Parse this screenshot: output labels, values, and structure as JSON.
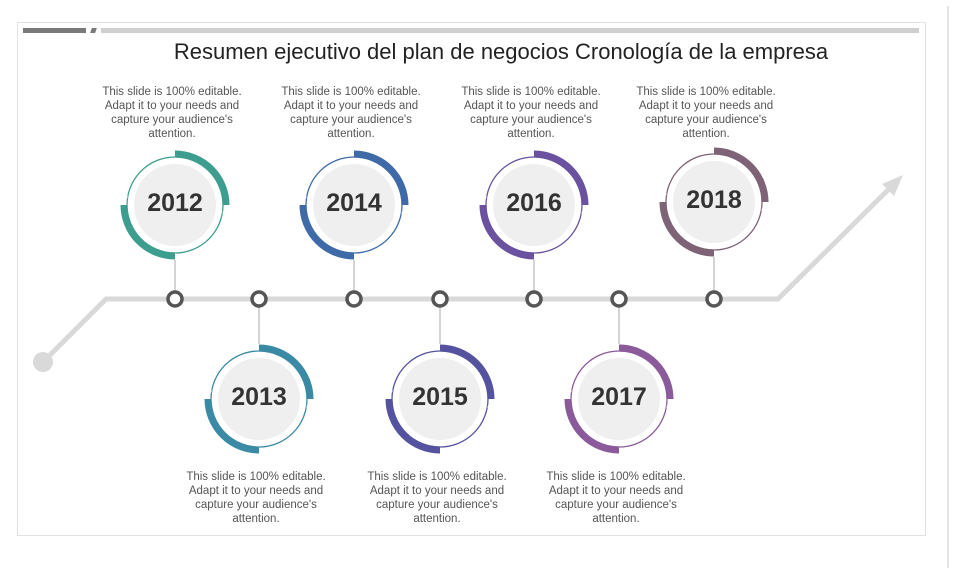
{
  "slide": {
    "title": "Resumen ejecutivo del plan de negocios Cronología de la empresa",
    "accent_dark": "#7a7a7a",
    "accent_light": "#cfcfcf",
    "timeline_color": "#d9d9d9",
    "node_color": "#555555",
    "inner_fill": "#efefef"
  },
  "milestones": [
    {
      "year": "2012",
      "position": "top",
      "color": "#3d9e8f",
      "text": "This slide is 100% editable. Adapt it to your needs and capture your audience's attention."
    },
    {
      "year": "2013",
      "position": "bottom",
      "color": "#3b8aa5",
      "text": "This slide is 100% editable. Adapt it to your needs and capture your audience's attention."
    },
    {
      "year": "2014",
      "position": "top",
      "color": "#3f6aa8",
      "text": "This slide is 100% editable. Adapt it to your needs and capture your audience's attention."
    },
    {
      "year": "2015",
      "position": "bottom",
      "color": "#55539f",
      "text": "This slide is 100% editable. Adapt it to your needs and capture your audience's attention."
    },
    {
      "year": "2016",
      "position": "top",
      "color": "#6a52a0",
      "text": "This slide is 100% editable. Adapt it to your needs and capture your audience's attention."
    },
    {
      "year": "2017",
      "position": "bottom",
      "color": "#8a5a9a",
      "text": "This slide is 100% editable. Adapt it to your needs and capture your audience's attention."
    },
    {
      "year": "2018",
      "position": "top",
      "color": "#7e6275",
      "text": "This slide is 100% editable. Adapt it to your needs and capture your audience's attention."
    }
  ]
}
